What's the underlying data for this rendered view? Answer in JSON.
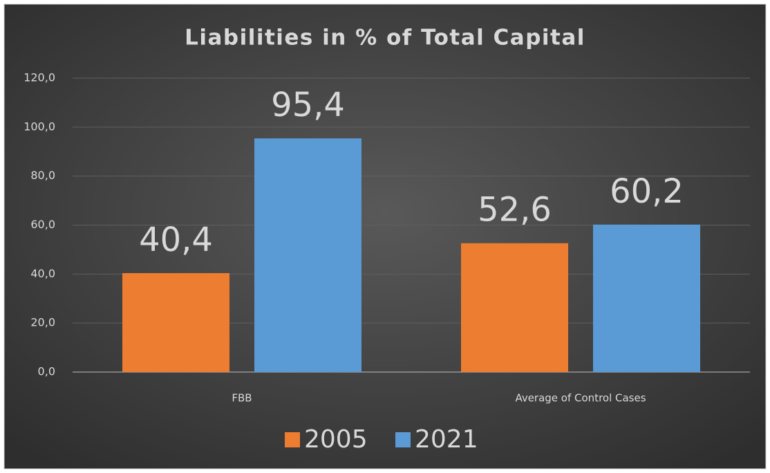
{
  "chart_data": {
    "type": "bar",
    "title": "Liabilities in % of Total Capital",
    "categories": [
      "FBB",
      "Average of Control Cases"
    ],
    "series": [
      {
        "name": "2005",
        "color": "#ed7d31",
        "values": [
          40.4,
          52.6
        ],
        "value_labels": [
          "40,4",
          "52,6"
        ]
      },
      {
        "name": "2021",
        "color": "#5b9bd5",
        "values": [
          95.4,
          60.2
        ],
        "value_labels": [
          "95,4",
          "60,2"
        ]
      }
    ],
    "ylim": [
      0,
      120
    ],
    "yticks": [
      {
        "value": 0,
        "label": "0,0"
      },
      {
        "value": 20,
        "label": "20,0"
      },
      {
        "value": 40,
        "label": "40,0"
      },
      {
        "value": 60,
        "label": "60,0"
      },
      {
        "value": 80,
        "label": "80,0"
      },
      {
        "value": 100,
        "label": "100,0"
      },
      {
        "value": 120,
        "label": "120,0"
      }
    ],
    "grid": true,
    "legend": "bottom"
  }
}
